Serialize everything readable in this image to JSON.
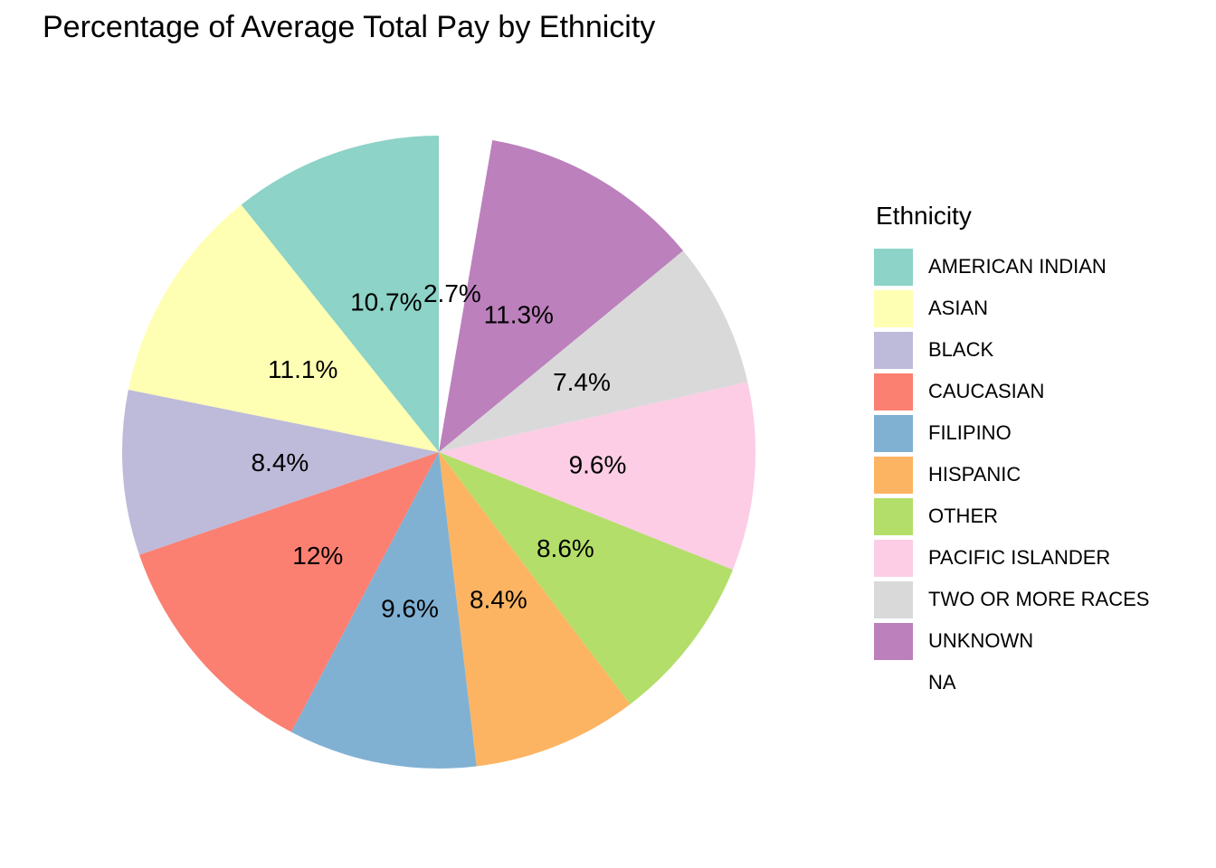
{
  "page": {
    "background": "#FFFFFF"
  },
  "chart_data": {
    "type": "pie",
    "title": "Percentage of Average Total Pay by Ethnicity",
    "legend_title": "Ethnicity",
    "legend_position": "right",
    "unit": "percent",
    "grid": false,
    "slices": [
      {
        "category": "AMERICAN INDIAN",
        "value": 10.7,
        "label": "10.7%",
        "color": "#8DD3C7"
      },
      {
        "category": "ASIAN",
        "value": 11.1,
        "label": "11.1%",
        "color": "#FFFFB3"
      },
      {
        "category": "BLACK",
        "value": 8.4,
        "label": "8.4%",
        "color": "#BEBADA"
      },
      {
        "category": "CAUCASIAN",
        "value": 12,
        "label": "12%",
        "color": "#FB8072"
      },
      {
        "category": "FILIPINO",
        "value": 9.6,
        "label": "9.6%",
        "color": "#80B1D3"
      },
      {
        "category": "HISPANIC",
        "value": 8.4,
        "label": "8.4%",
        "color": "#FDB462"
      },
      {
        "category": "OTHER",
        "value": 8.6,
        "label": "8.6%",
        "color": "#B3DE69"
      },
      {
        "category": "PACIFIC ISLANDER",
        "value": 9.6,
        "label": "9.6%",
        "color": "#FCCDE5"
      },
      {
        "category": "TWO OR MORE RACES",
        "value": 7.4,
        "label": "7.4%",
        "color": "#D9D9D9"
      },
      {
        "category": "UNKNOWN",
        "value": 11.3,
        "label": "11.3%",
        "color": "#BC80BD"
      },
      {
        "category": "NA",
        "value": 2.7,
        "label": "2.7%",
        "color": "#FFFFFF"
      }
    ],
    "slice_order_clockwise_from_top": [
      "NA",
      "UNKNOWN",
      "TWO OR MORE RACES",
      "PACIFIC ISLANDER",
      "OTHER",
      "HISPANIC",
      "FILIPINO",
      "CAUCASIAN",
      "BLACK",
      "ASIAN",
      "AMERICAN INDIAN"
    ]
  }
}
